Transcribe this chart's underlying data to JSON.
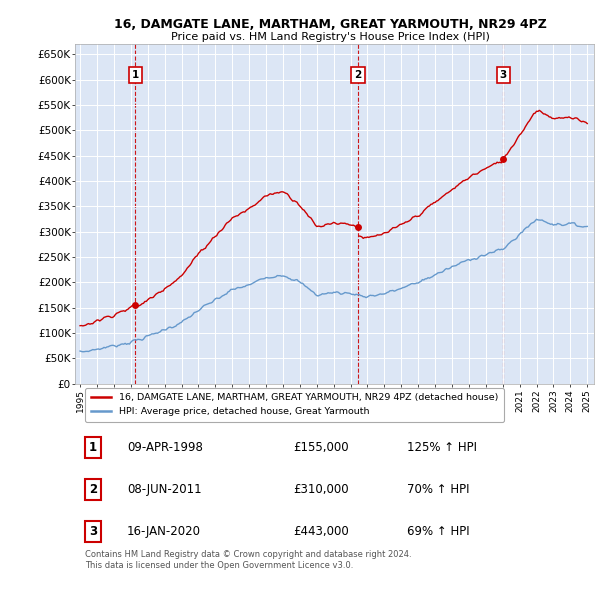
{
  "title": "16, DAMGATE LANE, MARTHAM, GREAT YARMOUTH, NR29 4PZ",
  "subtitle": "Price paid vs. HM Land Registry's House Price Index (HPI)",
  "ylim": [
    0,
    670000
  ],
  "yticks": [
    0,
    50000,
    100000,
    150000,
    200000,
    250000,
    300000,
    350000,
    400000,
    450000,
    500000,
    550000,
    600000,
    650000
  ],
  "ytick_labels": [
    "£0",
    "£50K",
    "£100K",
    "£150K",
    "£200K",
    "£250K",
    "£300K",
    "£350K",
    "£400K",
    "£450K",
    "£500K",
    "£550K",
    "£600K",
    "£650K"
  ],
  "sale_color": "#cc0000",
  "hpi_color": "#6699cc",
  "sale_points": [
    {
      "date": 1998.27,
      "price": 155000,
      "label": "1"
    },
    {
      "date": 2011.44,
      "price": 310000,
      "label": "2"
    },
    {
      "date": 2020.04,
      "price": 443000,
      "label": "3"
    }
  ],
  "vline_dates": [
    1998.27,
    2011.44,
    2020.04
  ],
  "legend_label_sale": "16, DAMGATE LANE, MARTHAM, GREAT YARMOUTH, NR29 4PZ (detached house)",
  "legend_label_hpi": "HPI: Average price, detached house, Great Yarmouth",
  "table_rows": [
    {
      "num": "1",
      "date": "09-APR-1998",
      "price": "£155,000",
      "pct": "125% ↑ HPI"
    },
    {
      "num": "2",
      "date": "08-JUN-2011",
      "price": "£310,000",
      "pct": "70% ↑ HPI"
    },
    {
      "num": "3",
      "date": "16-JAN-2020",
      "price": "£443,000",
      "pct": "69% ↑ HPI"
    }
  ],
  "footer": "Contains HM Land Registry data © Crown copyright and database right 2024.\nThis data is licensed under the Open Government Licence v3.0.",
  "background_color": "#ffffff",
  "plot_bg_color": "#dce6f5",
  "hpi_base_x": [
    1995,
    1996,
    1997,
    1998,
    1999,
    2000,
    2001,
    2002,
    2003,
    2004,
    2005,
    2006,
    2007,
    2008,
    2009,
    2010,
    2011,
    2012,
    2013,
    2014,
    2015,
    2016,
    2017,
    2018,
    2019,
    2020,
    2021,
    2022,
    2023,
    2024,
    2025
  ],
  "hpi_base_y": [
    62000,
    68000,
    75000,
    82000,
    93000,
    107000,
    120000,
    145000,
    165000,
    185000,
    195000,
    210000,
    215000,
    200000,
    175000,
    180000,
    178000,
    172000,
    178000,
    188000,
    200000,
    215000,
    230000,
    245000,
    255000,
    265000,
    295000,
    325000,
    315000,
    315000,
    310000
  ]
}
